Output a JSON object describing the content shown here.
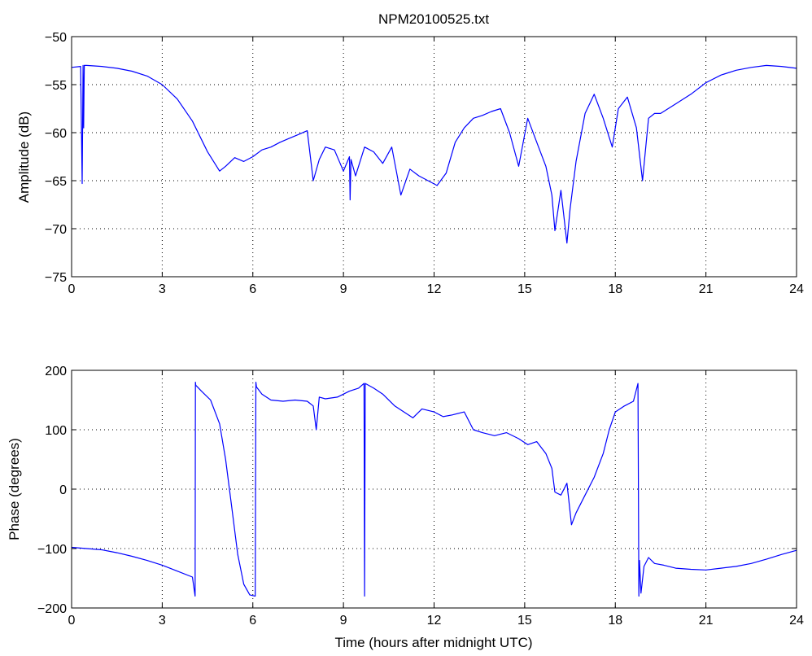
{
  "chart_data": [
    {
      "type": "line",
      "title": "NPM20100525.txt",
      "xlabel": "",
      "ylabel": "Amplitude (dB)",
      "xlim": [
        0,
        24
      ],
      "ylim": [
        -75,
        -50
      ],
      "xticks": [
        0,
        3,
        6,
        9,
        12,
        15,
        18,
        21,
        24
      ],
      "yticks": [
        -75,
        -70,
        -65,
        -60,
        -55,
        -50
      ],
      "xtick_labels": [
        "0",
        "3",
        "6",
        "9",
        "12",
        "15",
        "18",
        "21",
        "24"
      ],
      "ytick_labels": [
        "−75",
        "−70",
        "−65",
        "−60",
        "−55",
        "−50"
      ],
      "grid": true,
      "line_color": "#0000ff",
      "series": [
        {
          "x": [
            0,
            0.3,
            0.35,
            0.38,
            0.4,
            0.42,
            0.45,
            0.5,
            1,
            1.5,
            2,
            2.5,
            3,
            3.5,
            4,
            4.5,
            4.9,
            5.1,
            5.4,
            5.7,
            6,
            6.3,
            6.6,
            6.9,
            7.2,
            7.5,
            7.8,
            8.0,
            8.2,
            8.4,
            8.7,
            9.0,
            9.2,
            9.22,
            9.25,
            9.4,
            9.7,
            10.0,
            10.3,
            10.6,
            10.9,
            11.2,
            11.5,
            11.8,
            12.1,
            12.4,
            12.7,
            13.0,
            13.3,
            13.6,
            13.9,
            14.2,
            14.5,
            14.8,
            15.1,
            15.4,
            15.7,
            15.9,
            16.0,
            16.2,
            16.4,
            16.5,
            16.7,
            17.0,
            17.3,
            17.6,
            17.9,
            18.1,
            18.4,
            18.7,
            18.9,
            19.1,
            19.3,
            19.5,
            20.0,
            20.5,
            21.0,
            21.5,
            22.0,
            22.5,
            23.0,
            23.5,
            24
          ],
          "y": [
            -53.2,
            -53.1,
            -65.3,
            -53.0,
            -59.5,
            -53.0,
            -53.0,
            -53.0,
            -53.1,
            -53.3,
            -53.6,
            -54.1,
            -55.0,
            -56.5,
            -58.8,
            -62.0,
            -64.0,
            -63.5,
            -62.6,
            -63.0,
            -62.5,
            -61.8,
            -61.5,
            -61.0,
            -60.6,
            -60.2,
            -59.8,
            -65.0,
            -62.8,
            -61.5,
            -61.8,
            -64.0,
            -62.5,
            -67.0,
            -62.8,
            -64.5,
            -61.5,
            -62.0,
            -63.2,
            -61.5,
            -66.5,
            -63.8,
            -64.5,
            -65.0,
            -65.5,
            -64.2,
            -61.0,
            -59.5,
            -58.5,
            -58.2,
            -57.8,
            -57.5,
            -60.0,
            -63.5,
            -58.5,
            -61.0,
            -63.5,
            -66.5,
            -70.2,
            -66.0,
            -71.5,
            -68.0,
            -63.0,
            -58.0,
            -56.0,
            -58.5,
            -61.5,
            -57.5,
            -56.3,
            -59.5,
            -65.0,
            -58.5,
            -58.0,
            -58.0,
            -57.0,
            -56.0,
            -54.8,
            -54.0,
            -53.5,
            -53.2,
            -53.0,
            -53.1,
            -53.3
          ]
        }
      ]
    },
    {
      "type": "line",
      "title": "",
      "xlabel": "Time (hours after midnight UTC)",
      "ylabel": "Phase (degrees)",
      "xlim": [
        0,
        24
      ],
      "ylim": [
        -200,
        200
      ],
      "xticks": [
        0,
        3,
        6,
        9,
        12,
        15,
        18,
        21,
        24
      ],
      "yticks": [
        -200,
        -100,
        0,
        100,
        200
      ],
      "xtick_labels": [
        "0",
        "3",
        "6",
        "9",
        "12",
        "15",
        "18",
        "21",
        "24"
      ],
      "ytick_labels": [
        "−200",
        "−100",
        "0",
        "100",
        "200"
      ],
      "grid": true,
      "line_color": "#0000ff",
      "series": [
        {
          "x": [
            0,
            0.5,
            1,
            1.5,
            2,
            2.5,
            3,
            3.5,
            4.0,
            4.09,
            4.1,
            4.11,
            4.3,
            4.6,
            4.9,
            5.1,
            5.3,
            5.5,
            5.7,
            5.9,
            6.08,
            6.1,
            6.12,
            6.3,
            6.6,
            7.0,
            7.4,
            7.8,
            8.0,
            8.1,
            8.2,
            8.4,
            8.8,
            9.2,
            9.5,
            9.68,
            9.7,
            9.72,
            10.0,
            10.3,
            10.7,
            11.0,
            11.3,
            11.6,
            12.0,
            12.3,
            12.6,
            13.0,
            13.3,
            13.6,
            14.0,
            14.4,
            14.8,
            15.1,
            15.4,
            15.7,
            15.9,
            16.0,
            16.2,
            16.4,
            16.55,
            16.7,
            17.0,
            17.3,
            17.6,
            17.8,
            18.0,
            18.3,
            18.6,
            18.75,
            18.78,
            18.8,
            18.85,
            18.95,
            19.1,
            19.3,
            19.6,
            20.0,
            20.5,
            21.0,
            21.5,
            22.0,
            22.5,
            23.0,
            23.5,
            24
          ],
          "y": [
            -98,
            -100,
            -102,
            -107,
            -113,
            -120,
            -128,
            -138,
            -148,
            -180,
            180,
            175,
            165,
            150,
            110,
            50,
            -30,
            -110,
            -160,
            -178,
            -180,
            180,
            172,
            160,
            150,
            148,
            150,
            148,
            140,
            100,
            155,
            152,
            155,
            165,
            170,
            178,
            -180,
            178,
            170,
            160,
            140,
            130,
            120,
            135,
            130,
            122,
            125,
            130,
            100,
            95,
            90,
            95,
            85,
            75,
            80,
            60,
            35,
            -5,
            -10,
            10,
            -60,
            -40,
            -10,
            20,
            60,
            100,
            130,
            140,
            148,
            178,
            -180,
            -120,
            -175,
            -130,
            -115,
            -125,
            -128,
            -133,
            -135,
            -136,
            -133,
            -130,
            -125,
            -118,
            -110,
            -103
          ]
        }
      ]
    }
  ]
}
